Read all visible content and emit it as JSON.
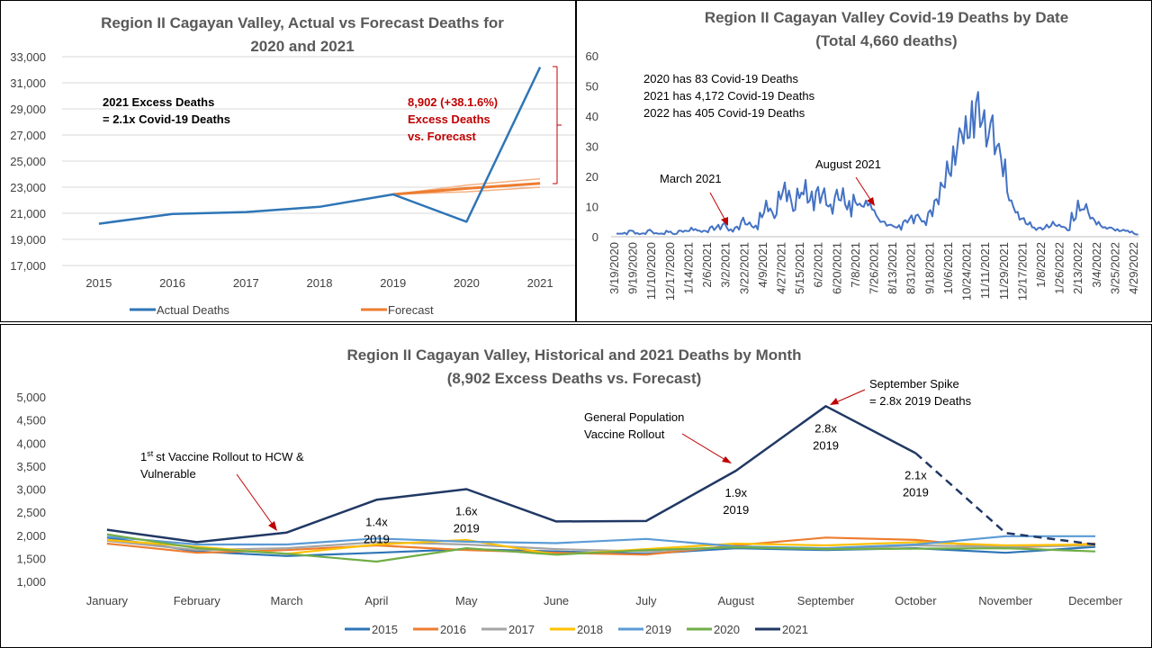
{
  "chart_data": [
    {
      "type": "line",
      "title": [
        "Region II Cagayan Valley, Actual vs Forecast Deaths for",
        "2020 and 2021"
      ],
      "categories": [
        "2015",
        "2016",
        "2017",
        "2018",
        "2019",
        "2020",
        "2021"
      ],
      "ylim": [
        17000,
        33000
      ],
      "yticks": [
        17000,
        19000,
        21000,
        23000,
        25000,
        27000,
        29000,
        31000,
        33000
      ],
      "ytick_labels": [
        "17,000",
        "19,000",
        "21,000",
        "23,000",
        "25,000",
        "27,000",
        "29,000",
        "31,000",
        "33,000"
      ],
      "grid": true,
      "legend_placement": "bottom",
      "series": [
        {
          "name": "Actual Deaths",
          "color": "#2e75b6",
          "values": [
            20200,
            20950,
            21100,
            21500,
            22450,
            20350,
            32200
          ]
        },
        {
          "name": "Forecast",
          "color": "#ed7d31",
          "values": [
            null,
            null,
            null,
            null,
            22450,
            22900,
            23300
          ]
        },
        {
          "name": "",
          "color": "#f4b183",
          "values": [
            null,
            null,
            null,
            null,
            22450,
            23150,
            23650
          ]
        },
        {
          "name": "",
          "color": "#f4b183",
          "values": [
            null,
            null,
            null,
            null,
            22450,
            22650,
            23000
          ]
        }
      ],
      "annotations": {
        "left_note": [
          "2021 Excess Deaths",
          "= 2.1x Covid-19 Deaths"
        ],
        "excess_note": [
          "8,902 (+38.1.6%)",
          "Excess Deaths",
          "vs. Forecast"
        ]
      }
    },
    {
      "type": "line",
      "title": [
        "Region II Cagayan Valley Covid-19 Deaths by Date",
        "(Total 4,660 deaths)"
      ],
      "ylim": [
        0,
        60
      ],
      "yticks": [
        0,
        10,
        20,
        30,
        40,
        50,
        60
      ],
      "x_range": [
        "3/19/2020",
        "5/10/2022"
      ],
      "xtick_labels": [
        "3/19/2020",
        "9/19/2020",
        "11/10/2020",
        "12/17/2020",
        "1/14/2021",
        "2/6/2021",
        "3/2/2021",
        "3/22/2021",
        "4/9/2021",
        "4/27/2021",
        "5/15/2021",
        "6/2/2021",
        "6/20/2021",
        "7/8/2021",
        "7/26/2021",
        "8/13/2021",
        "8/31/2021",
        "9/18/2021",
        "10/6/2021",
        "10/24/2021",
        "11/11/2021",
        "11/29/2021",
        "12/17/2021",
        "1/8/2022",
        "1/26/2022",
        "2/13/2022",
        "3/4/2022",
        "3/25/2022",
        "4/29/2022"
      ],
      "series": [
        {
          "color": "#4472c4",
          "values": [
            1,
            1,
            2,
            1,
            1,
            2,
            1,
            1,
            2,
            1,
            2,
            2,
            3,
            2,
            2,
            3,
            3,
            4,
            2,
            3,
            5,
            4,
            3,
            8,
            12,
            8,
            15,
            18,
            12,
            16,
            14,
            12,
            15,
            14,
            10,
            13,
            12,
            9,
            14,
            11,
            12,
            9,
            6,
            5,
            4,
            3,
            5,
            6,
            7,
            5,
            8,
            12,
            18,
            25,
            30,
            36,
            40,
            45,
            48,
            42,
            38,
            30,
            20,
            12,
            8,
            6,
            4,
            3,
            3,
            4,
            5,
            4,
            3,
            8,
            12,
            9,
            6,
            4,
            3,
            3,
            2,
            2,
            2,
            1
          ]
        }
      ],
      "annotations": {
        "totals": [
          "2020 has 83 Covid-19 Deaths",
          "2021 has 4,172 Covid-19 Deaths",
          "2022 has 405 Covid-19 Deaths"
        ],
        "march": "March 2021",
        "august": "August 2021"
      }
    },
    {
      "type": "line",
      "title": [
        "Region II Cagayan Valley, Historical and 2021 Deaths by Month",
        "(8,902 Excess Deaths vs. Forecast)"
      ],
      "categories": [
        "January",
        "February",
        "March",
        "April",
        "May",
        "June",
        "July",
        "August",
        "September",
        "October",
        "November",
        "December"
      ],
      "ylim": [
        1000,
        5000
      ],
      "yticks": [
        1000,
        1500,
        2000,
        2500,
        3000,
        3500,
        4000,
        4500,
        5000
      ],
      "ytick_labels": [
        "1,000",
        "1,500",
        "2,000",
        "2,500",
        "3,000",
        "3,500",
        "4,000",
        "4,500",
        "5,000"
      ],
      "legend_placement": "bottom",
      "series": [
        {
          "name": "2015",
          "color": "#2e75b6",
          "values": [
            1950,
            1650,
            1550,
            1620,
            1700,
            1650,
            1600,
            1720,
            1680,
            1720,
            1620,
            1750
          ]
        },
        {
          "name": "2016",
          "color": "#ed7d31",
          "values": [
            1820,
            1620,
            1680,
            1780,
            1680,
            1620,
            1580,
            1780,
            1950,
            1900,
            1720,
            1820
          ]
        },
        {
          "name": "2017",
          "color": "#a5a5a5",
          "values": [
            1880,
            1680,
            1720,
            1850,
            1800,
            1700,
            1650,
            1750,
            1700,
            1780,
            1750,
            1780
          ]
        },
        {
          "name": "2018",
          "color": "#ffc000",
          "values": [
            1900,
            1750,
            1600,
            1800,
            1900,
            1580,
            1700,
            1820,
            1780,
            1850,
            1780,
            1800
          ]
        },
        {
          "name": "2019",
          "color": "#5b9bd5",
          "values": [
            1970,
            1800,
            1800,
            1930,
            1860,
            1830,
            1920,
            1760,
            1720,
            1800,
            1980,
            1980
          ]
        },
        {
          "name": "2020",
          "color": "#70ad47",
          "values": [
            2020,
            1720,
            1600,
            1430,
            1720,
            1580,
            1680,
            1740,
            1700,
            1710,
            1720,
            1650
          ]
        },
        {
          "name": "2021",
          "color": "#203864",
          "values": [
            2120,
            1850,
            2060,
            2770,
            3000,
            2300,
            2310,
            3400,
            4800,
            3780,
            2050,
            1800
          ],
          "dashed_from_index": 9
        }
      ],
      "annotations": {
        "vaccine1": [
          "st Vaccine Rollout to HCW &",
          "Vulnerable"
        ],
        "vaccine1_prefix": "1",
        "general": [
          "General Population",
          "Vaccine Rollout"
        ],
        "spike": [
          "September Spike",
          "= 2.8x 2019 Deaths"
        ],
        "ratios": [
          {
            "month": "April",
            "text": [
              "1.4x",
              "2019"
            ]
          },
          {
            "month": "May",
            "text": [
              "1.6x",
              "2019"
            ]
          },
          {
            "month": "August",
            "text": [
              "1.9x",
              "2019"
            ]
          },
          {
            "month": "September",
            "text": [
              "2.8x",
              "2019"
            ]
          },
          {
            "month": "October",
            "text": [
              "2.1x",
              "2019"
            ]
          }
        ]
      }
    }
  ]
}
